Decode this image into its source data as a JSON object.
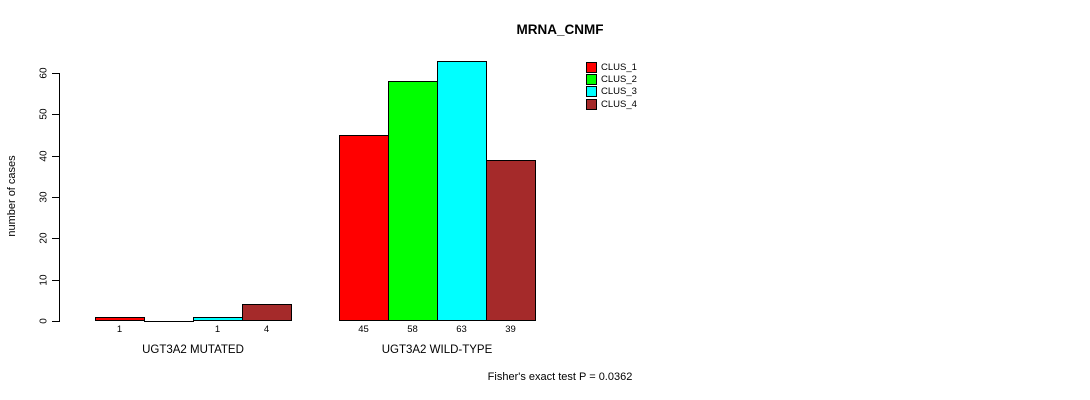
{
  "chart_data": {
    "type": "bar",
    "title": "MRNA_CNMF",
    "xlabel": "",
    "ylabel": "number of cases",
    "ylim": [
      0,
      65
    ],
    "yticks": [
      0,
      10,
      20,
      30,
      40,
      50,
      60
    ],
    "grid": false,
    "legend_position": "top-right",
    "categories": [
      "UGT3A2 MUTATED",
      "UGT3A2 WILD-TYPE"
    ],
    "series": [
      {
        "name": "CLUS_1",
        "color": "#FF0000",
        "values": [
          1,
          45
        ]
      },
      {
        "name": "CLUS_2",
        "color": "#00FF00",
        "values": [
          0,
          58
        ]
      },
      {
        "name": "CLUS_3",
        "color": "#00FFFF",
        "values": [
          1,
          63
        ]
      },
      {
        "name": "CLUS_4",
        "color": "#A52A2A",
        "values": [
          4,
          39
        ]
      }
    ],
    "bar_labels": [
      [
        "1",
        "",
        "1",
        "4"
      ],
      [
        "45",
        "58",
        "63",
        "39"
      ]
    ],
    "annotation": "Fisher's exact test P = 0.0362",
    "axis_color": "#000000",
    "background_color": "#FFFFFF"
  }
}
